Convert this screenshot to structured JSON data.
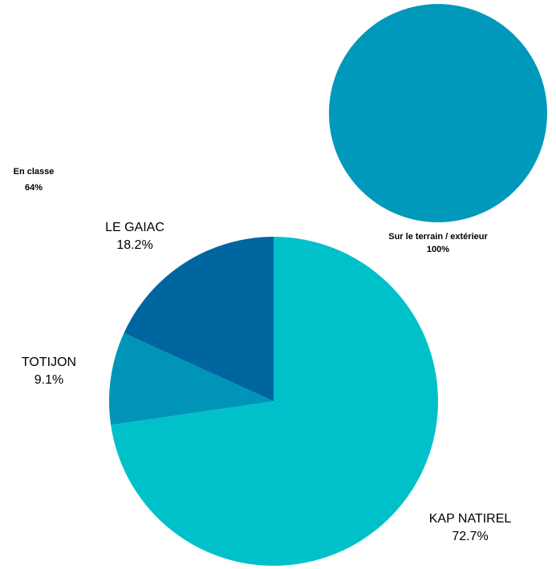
{
  "chart_data": [
    {
      "type": "pie",
      "categories": [
        "Sur le terrain / extérieur"
      ],
      "values": [
        100
      ],
      "value_labels": [
        "100%"
      ],
      "colors": [
        "#0099bb"
      ],
      "annotations": [
        {
          "text": "En classe",
          "value": 64,
          "value_label": "64%"
        }
      ]
    },
    {
      "type": "pie",
      "categories": [
        "KAP NATIREL",
        "TOTIJON",
        "LE GAIAC"
      ],
      "values": [
        72.7,
        9.1,
        18.2
      ],
      "value_labels": [
        "72.7%",
        "9.1%",
        "18.2%"
      ],
      "colors": [
        "#00c1ca",
        "#0095b8",
        "#0066a0"
      ]
    }
  ]
}
